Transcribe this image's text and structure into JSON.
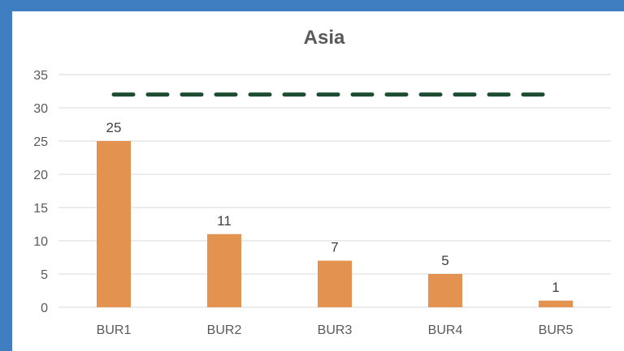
{
  "chart_data": {
    "type": "bar",
    "title": "Asia",
    "categories": [
      "BUR1",
      "BUR2",
      "BUR3",
      "BUR4",
      "BUR5"
    ],
    "values": [
      25,
      11,
      7,
      5,
      1
    ],
    "data_labels": [
      "25",
      "11",
      "7",
      "5",
      "1"
    ],
    "ylim": [
      0,
      35
    ],
    "yticks": [
      0,
      5,
      10,
      15,
      20,
      25,
      30,
      35
    ],
    "ytick_labels": [
      "0",
      "5",
      "10",
      "15",
      "20",
      "25",
      "30",
      "35"
    ],
    "reference_line": {
      "value": 32,
      "style": "dashed"
    },
    "grid": true,
    "legend": "none",
    "colors": {
      "bar": "#e4924f",
      "reference_line": "#1d4d32",
      "grid": "#d9d9d9",
      "background": "#3f7fc1"
    }
  }
}
